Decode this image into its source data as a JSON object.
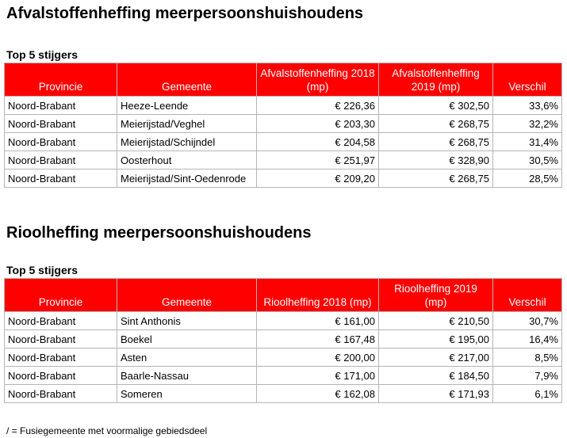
{
  "sections": [
    {
      "title": "Afvalstoffenheffing meerpersoonshuishoudens",
      "subtitle": "Top 5 stijgers",
      "columns": [
        "Provincie",
        "Gemeente",
        "Afvalstoffenheffing 2018 (mp)",
        "Afvalstoffenheffing 2019 (mp)",
        "Verschil"
      ],
      "rows": [
        [
          "Noord-Brabant",
          "Heeze-Leende",
          "€ 226,36",
          "€ 302,50",
          "33,6%"
        ],
        [
          "Noord-Brabant",
          "Meierijstad/Veghel",
          "€ 203,30",
          "€ 268,75",
          "32,2%"
        ],
        [
          "Noord-Brabant",
          "Meierijstad/Schijndel",
          "€ 204,58",
          "€ 268,75",
          "31,4%"
        ],
        [
          "Noord-Brabant",
          "Oosterhout",
          "€ 251,97",
          "€ 328,90",
          "30,5%"
        ],
        [
          "Noord-Brabant",
          "Meierijstad/Sint-Oedenrode",
          "€ 209,20",
          "€ 268,75",
          "28,5%"
        ]
      ]
    },
    {
      "title": "Rioolheffing meerpersoonshuishoudens",
      "subtitle": "Top 5 stijgers",
      "columns": [
        "Provincie",
        "Gemeente",
        "Rioolheffing 2018 (mp)",
        "Rioolheffing 2019 (mp)",
        "Verschil"
      ],
      "rows": [
        [
          "Noord-Brabant",
          "Sint Anthonis",
          "€ 161,00",
          "€ 210,50",
          "30,7%"
        ],
        [
          "Noord-Brabant",
          "Boekel",
          "€ 167,48",
          "€ 195,00",
          "16,4%"
        ],
        [
          "Noord-Brabant",
          "Asten",
          "€ 200,00",
          "€ 217,00",
          "8,5%"
        ],
        [
          "Noord-Brabant",
          "Baarle-Nassau",
          "€ 171,00",
          "€ 184,50",
          "7,9%"
        ],
        [
          "Noord-Brabant",
          "Someren",
          "€ 162,08",
          "€ 171,93",
          "6,1%"
        ]
      ]
    }
  ],
  "footnote": "/ = Fusiegemeente met voormalige gebiedsdeel",
  "colors": {
    "header_bg": "#ff0000",
    "header_text": "#ffffff",
    "border": "#b5b5b5"
  }
}
